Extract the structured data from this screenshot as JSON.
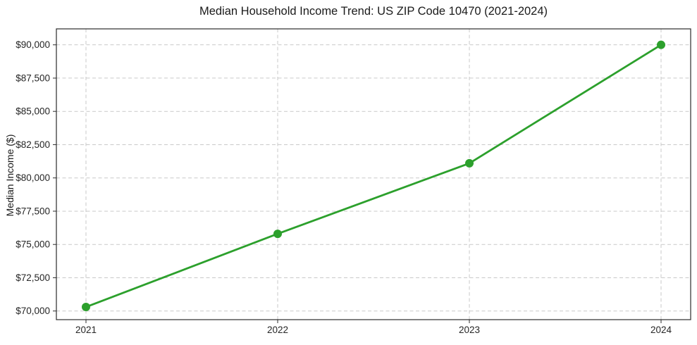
{
  "chart_data": {
    "type": "line",
    "title": "Median Household Income Trend: US ZIP Code 10470 (2021-2024)",
    "xlabel": "",
    "ylabel": "Median Income ($)",
    "x": [
      "2021",
      "2022",
      "2023",
      "2024"
    ],
    "series": [
      {
        "name": "Median Income",
        "values": [
          70300,
          75800,
          81100,
          90000
        ],
        "color": "#2ca02c",
        "marker": "circle",
        "marker_radius": 6
      }
    ],
    "xtick_labels": [
      "2021",
      "2022",
      "2023",
      "2024"
    ],
    "yticks": [
      70000,
      72500,
      75000,
      77500,
      80000,
      82500,
      85000,
      87500,
      90000
    ],
    "ytick_labels": [
      "$70,000",
      "$72,500",
      "$75,000",
      "$77,500",
      "$80,000",
      "$82,500",
      "$85,000",
      "$87,500",
      "$90,000"
    ],
    "ylim": [
      69350,
      91200
    ],
    "grid": true,
    "grid_style": "dashed",
    "legend": false,
    "colors": {
      "line": "#2ca02c",
      "grid": "#c9c9c9",
      "axis": "#2b2b2b",
      "text": "#262626",
      "background": "#ffffff"
    }
  }
}
